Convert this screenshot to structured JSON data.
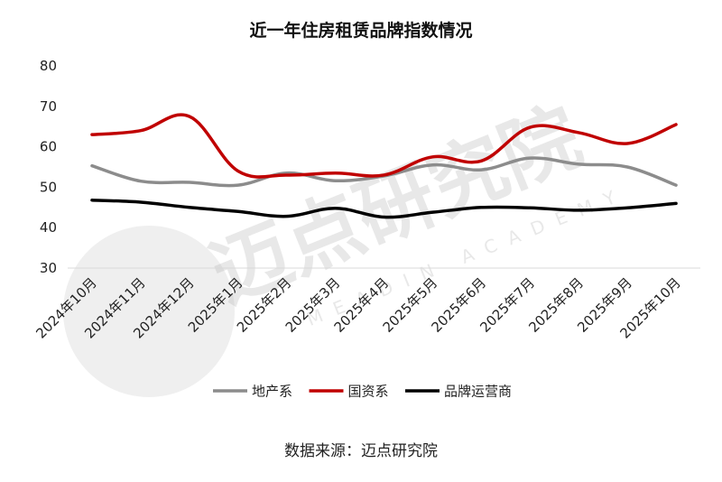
{
  "chart_data": {
    "type": "line",
    "title": "近一年住房租赁品牌指数情况",
    "categories": [
      "2024年10月",
      "2024年11月",
      "2024年12月",
      "2025年1月",
      "2025年2月",
      "2025年3月",
      "2025年4月",
      "2025年5月",
      "2025年6月",
      "2025年7月",
      "2025年8月",
      "2025年9月",
      "2025年10月"
    ],
    "ylim": [
      30,
      80
    ],
    "yticks": [
      30,
      40,
      50,
      60,
      70,
      80
    ],
    "grid": false,
    "legend_position": "bottom",
    "series": [
      {
        "name": "地产系",
        "color": "#8c8c8c",
        "values": [
          55.3,
          51.5,
          51.2,
          50.5,
          53.5,
          51.6,
          52.8,
          55.5,
          54.3,
          57.2,
          55.7,
          55.0,
          50.5
        ]
      },
      {
        "name": "国资系",
        "color": "#c00000",
        "values": [
          63.0,
          64.0,
          67.5,
          54.0,
          53.0,
          53.5,
          53.0,
          57.5,
          56.5,
          64.8,
          63.5,
          60.8,
          65.5
        ]
      },
      {
        "name": "品牌运营商",
        "color": "#000000",
        "values": [
          46.8,
          46.3,
          45.0,
          44.0,
          42.8,
          44.8,
          42.6,
          43.8,
          45.0,
          44.9,
          44.3,
          44.9,
          46.0
        ]
      }
    ]
  },
  "source": "数据来源：迈点研究院",
  "watermark": {
    "text": "迈点研究院",
    "subtext": "MEADIN ACADEMY"
  }
}
